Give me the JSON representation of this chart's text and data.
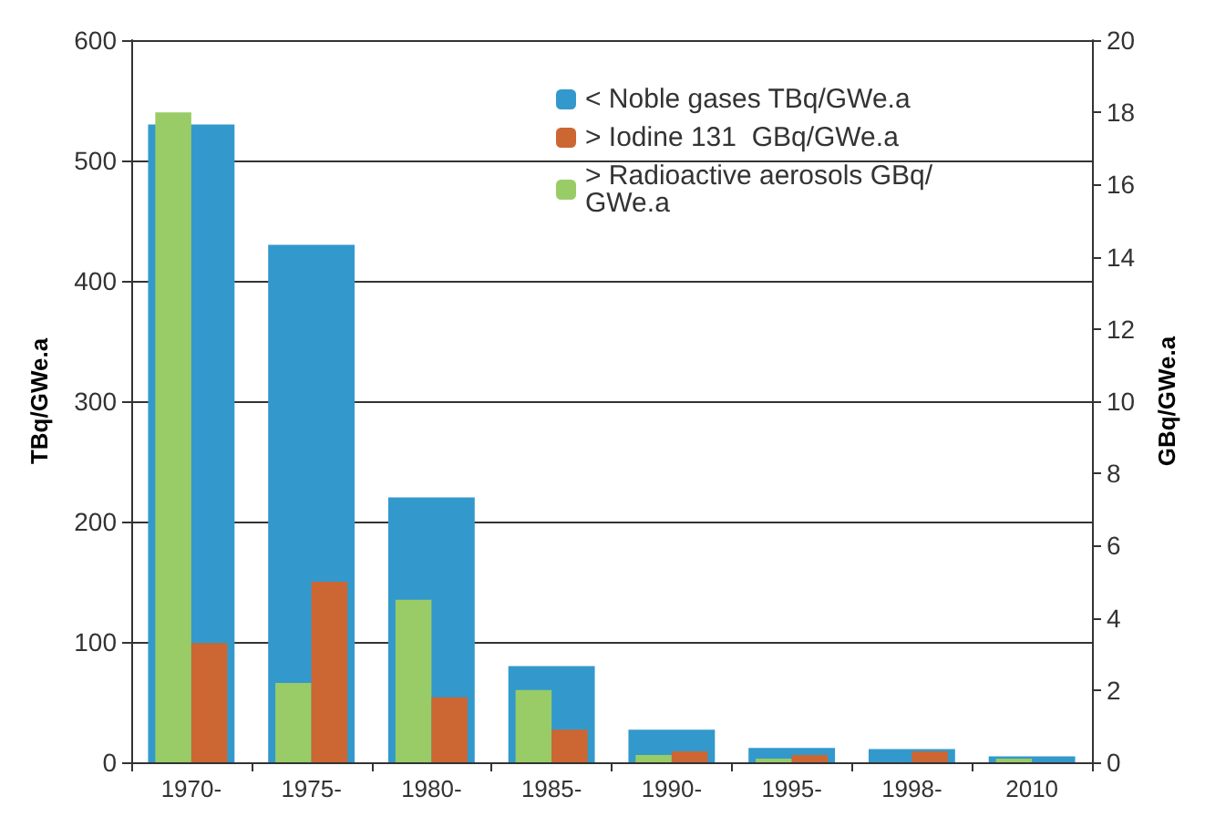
{
  "chart_data": {
    "type": "bar",
    "categories": [
      "1970-",
      "1975-",
      "1980-",
      "1985-",
      "1990-",
      "1995-",
      "1998-",
      "2010"
    ],
    "series": [
      {
        "name": "< Noble gases TBq/GWe.a",
        "color": "#3399cc",
        "values": [
          530,
          430,
          220,
          80,
          27,
          12,
          11,
          5
        ]
      },
      {
        "name": "> Iodine 131  GBq/GWe.a",
        "color": "#cc6633",
        "axis": "y2",
        "values": [
          3.3,
          5.0,
          1.8,
          0.9,
          0.3,
          0.2,
          0.3,
          0
        ]
      },
      {
        "name": "> Radioactive aerosols GBq/GWe.a",
        "color": "#99cc66",
        "axis": "y2",
        "values": [
          18.0,
          2.2,
          4.5,
          2.0,
          0.2,
          0.1,
          0,
          0.1
        ]
      }
    ],
    "ylabel": "TBq/GWe.a",
    "y2label": "GBq/GWe.a",
    "ylim": [
      0,
      600
    ],
    "yticks": [
      0,
      100,
      200,
      300,
      400,
      500,
      600
    ],
    "y2lim": [
      0,
      20
    ],
    "y2ticks": [
      0,
      2,
      4,
      6,
      8,
      10,
      12,
      14,
      16,
      18,
      20
    ],
    "grid": "y",
    "legend": "top right"
  }
}
